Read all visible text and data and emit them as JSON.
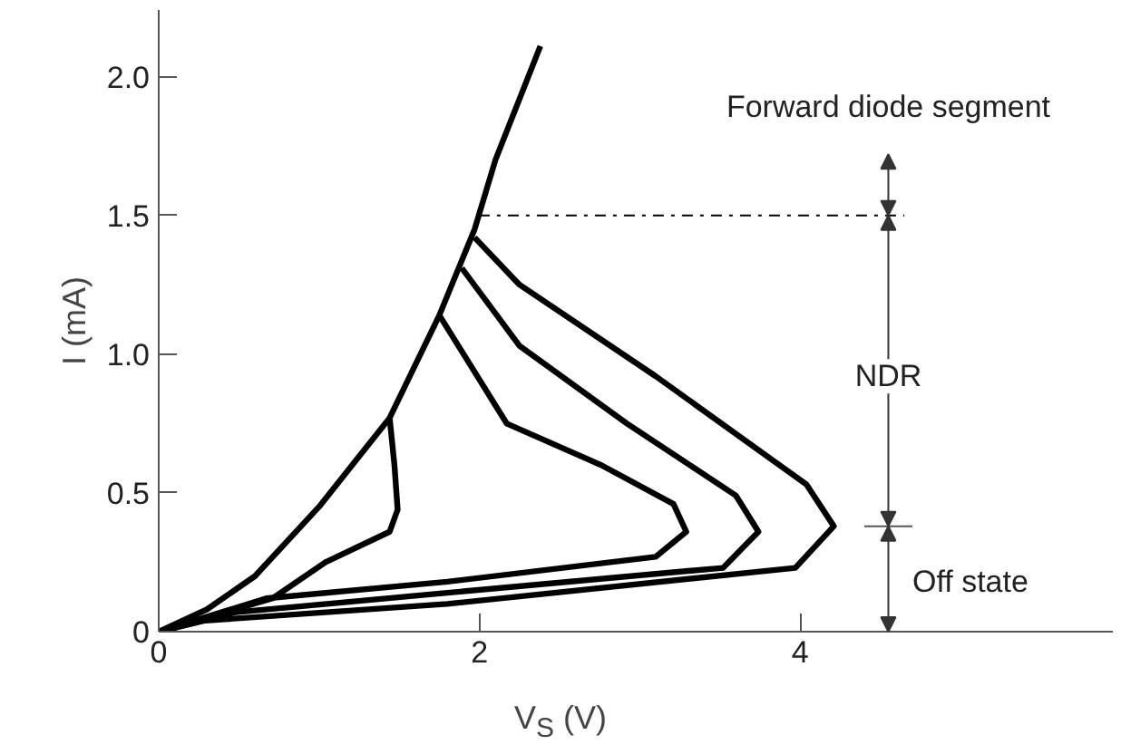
{
  "chart_data": {
    "type": "line",
    "xlabel": "V$_{S}$ (V)",
    "ylabel": "I (mA)",
    "xlim": [
      0,
      5.95
    ],
    "ylim": [
      0,
      2.24
    ],
    "xticks": [
      0,
      2,
      4
    ],
    "yticks": [
      0,
      {
        "value": 0.5,
        "label": "0.5"
      },
      {
        "value": 1.0,
        "label": "1.0"
      },
      {
        "value": 1.5,
        "label": "1.5"
      },
      {
        "value": 2.0,
        "label": "2.0"
      }
    ],
    "grid": false,
    "marker": "none",
    "line_style": "solid",
    "series": [
      {
        "color": "#000000",
        "x": [
          0,
          0.3,
          0.6,
          1.0,
          1.44,
          1.75,
          1.97,
          2.1,
          2.38
        ],
        "values": [
          0,
          0.08,
          0.2,
          0.45,
          0.77,
          1.14,
          1.45,
          1.7,
          2.11
        ]
      },
      {
        "color": "#000000",
        "x": [
          0,
          0.71,
          1.04,
          1.44,
          1.49,
          1.47,
          1.44
        ],
        "values": [
          0,
          0.12,
          0.25,
          0.36,
          0.44,
          0.6,
          0.77
        ]
      },
      {
        "color": "#000000",
        "x": [
          0,
          0.67,
          1.8,
          3.1,
          3.29,
          3.21,
          2.76,
          2.17,
          1.75
        ],
        "values": [
          0,
          0.12,
          0.18,
          0.27,
          0.36,
          0.46,
          0.6,
          0.75,
          1.14
        ]
      },
      {
        "color": "#000000",
        "x": [
          0,
          0.48,
          1.8,
          3.52,
          3.74,
          3.6,
          2.92,
          2.25,
          1.89
        ],
        "values": [
          0,
          0.07,
          0.14,
          0.23,
          0.36,
          0.49,
          0.75,
          1.03,
          1.31
        ]
      },
      {
        "color": "#000000",
        "x": [
          0,
          0.29,
          1.8,
          3.97,
          4.21,
          4.04,
          3.1,
          2.25,
          1.97
        ],
        "values": [
          0,
          0.04,
          0.1,
          0.23,
          0.38,
          0.53,
          0.92,
          1.25,
          1.42
        ]
      }
    ],
    "ref_lines": [
      {
        "axis": "y",
        "value": 1.5,
        "line_style": "dashdot",
        "color": "#000000"
      }
    ],
    "annotations": [
      "Forward diode segment",
      "NDR",
      "Off state"
    ]
  }
}
